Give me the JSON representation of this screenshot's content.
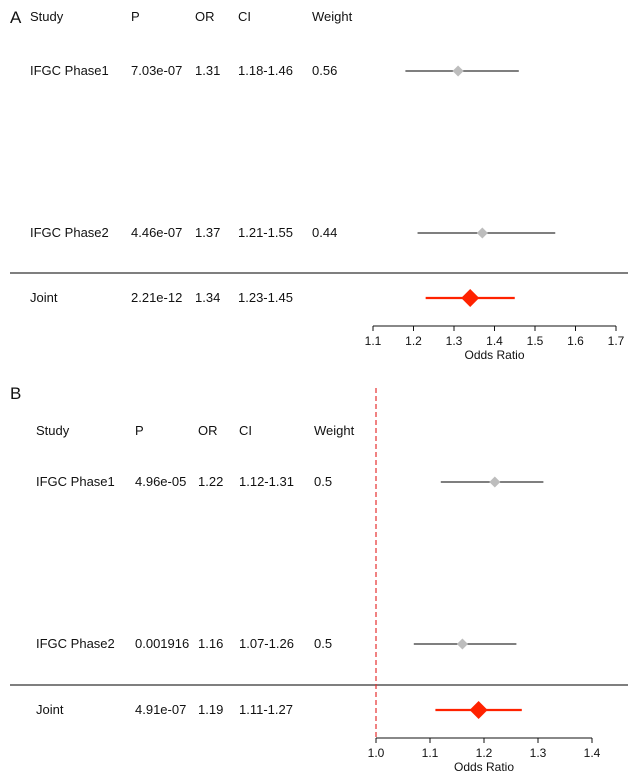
{
  "chart_data": [
    {
      "type": "forest",
      "panel_label": "A",
      "columns": [
        "Study",
        "P",
        "OR",
        "CI",
        "Weight"
      ],
      "rows": [
        {
          "study": "IFGC Phase1",
          "p": "7.03e-07",
          "or_text": "1.31",
          "ci_text": "1.18-1.46",
          "weight": "0.56",
          "or": 1.31,
          "lo": 1.18,
          "hi": 1.46,
          "joint": false
        },
        {
          "study": "IFGC Phase2",
          "p": "4.46e-07",
          "or_text": "1.37",
          "ci_text": "1.21-1.55",
          "weight": "0.44",
          "or": 1.37,
          "lo": 1.21,
          "hi": 1.55,
          "joint": false
        },
        {
          "study": "Joint",
          "p": "2.21e-12",
          "or_text": "1.34",
          "ci_text": "1.23-1.45",
          "weight": "",
          "or": 1.34,
          "lo": 1.23,
          "hi": 1.45,
          "joint": true
        }
      ],
      "xlabel": "Odds Ratio",
      "xlim": [
        1.1,
        1.7
      ],
      "xticks": [
        1.1,
        1.2,
        1.3,
        1.4,
        1.5,
        1.6,
        1.7
      ],
      "reference_line": null
    },
    {
      "type": "forest",
      "panel_label": "B",
      "columns": [
        "Study",
        "P",
        "OR",
        "CI",
        "Weight"
      ],
      "rows": [
        {
          "study": "IFGC Phase1",
          "p": "4.96e-05",
          "or_text": "1.22",
          "ci_text": "1.12-1.31",
          "weight": "0.5",
          "or": 1.22,
          "lo": 1.12,
          "hi": 1.31,
          "joint": false
        },
        {
          "study": "IFGC Phase2",
          "p": "0.001916",
          "or_text": "1.16",
          "ci_text": "1.07-1.26",
          "weight": "0.5",
          "or": 1.16,
          "lo": 1.07,
          "hi": 1.26,
          "joint": false
        },
        {
          "study": "Joint",
          "p": "4.91e-07",
          "or_text": "1.19",
          "ci_text": "1.11-1.27",
          "weight": "",
          "or": 1.19,
          "lo": 1.11,
          "hi": 1.27,
          "joint": true
        }
      ],
      "xlabel": "Odds Ratio",
      "xlim": [
        1.0,
        1.4
      ],
      "xticks": [
        1.0,
        1.1,
        1.2,
        1.3,
        1.4
      ],
      "reference_line": 1.0
    }
  ],
  "colors": {
    "study_marker": "#bdbdbd",
    "joint_marker": "#ff2200",
    "ci_line": "#333333",
    "reference_line": "#e53030",
    "separator": "#333333"
  }
}
